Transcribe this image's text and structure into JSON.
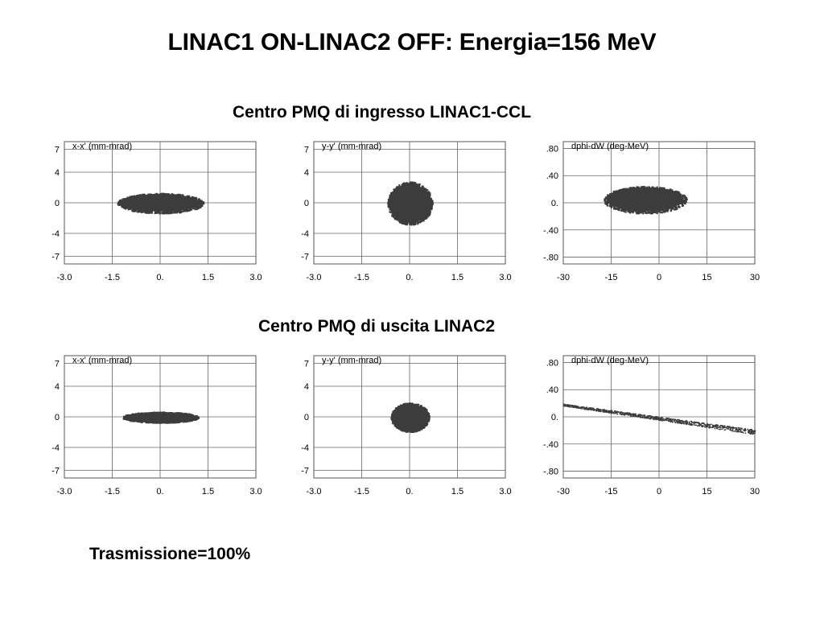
{
  "slide": {
    "title": "LINAC1 ON-LINAC2 OFF: Energia=156 MeV",
    "section_top": "Centro PMQ di ingresso LINAC1-CCL",
    "section_bottom": "Centro PMQ di uscita LINAC2",
    "footer": "Trasmissione=100%"
  },
  "chart_data": [
    {
      "type": "scatter",
      "panel": "ingresso-x",
      "title": "x-x' (mm-mrad)",
      "xlim": [
        -3.0,
        3.0
      ],
      "ylim": [
        -8,
        8
      ],
      "xticks": [
        -3.0,
        -1.5,
        0.0,
        1.5,
        3.0
      ],
      "xtick_labels": [
        "-3.0",
        "-1.5",
        "0.",
        "1.5",
        "3.0"
      ],
      "yticks": [
        7,
        4,
        0,
        -4,
        -7
      ],
      "ytick_labels": [
        "7",
        "4",
        "0",
        "-4",
        "-7"
      ],
      "grid": true,
      "cloud": {
        "shape": "ellipse",
        "center": [
          0.0,
          0.0
        ],
        "x_halfwidth": 1.35,
        "y_halfwidth": 1.3
      },
      "color": "#3c3c3c"
    },
    {
      "type": "scatter",
      "panel": "ingresso-y",
      "title": "y-y' (mm-mrad)",
      "xlim": [
        -3.0,
        3.0
      ],
      "ylim": [
        -8,
        8
      ],
      "xticks": [
        -3.0,
        -1.5,
        0.0,
        1.5,
        3.0
      ],
      "xtick_labels": [
        "-3.0",
        "-1.5",
        "0.",
        "1.5",
        "3.0"
      ],
      "yticks": [
        7,
        4,
        0,
        -4,
        -7
      ],
      "ytick_labels": [
        "7",
        "4",
        "0",
        "-4",
        "-7"
      ],
      "grid": true,
      "cloud": {
        "shape": "ellipse",
        "center": [
          0.0,
          0.0
        ],
        "x_halfwidth": 0.7,
        "y_halfwidth": 2.8
      },
      "color": "#3c3c3c"
    },
    {
      "type": "scatter",
      "panel": "ingresso-phase",
      "title": "dphi-dW (deg-MeV)",
      "xlim": [
        -30,
        30
      ],
      "ylim": [
        -0.9,
        0.9
      ],
      "xticks": [
        -30,
        -15,
        0,
        15,
        30
      ],
      "xtick_labels": [
        "-30",
        "-15",
        "0",
        "15",
        "30"
      ],
      "yticks": [
        0.8,
        0.4,
        0.0,
        -0.4,
        -0.8
      ],
      "ytick_labels": [
        ".80",
        ".40",
        "0.",
        "-.40",
        "-.80"
      ],
      "grid": true,
      "cloud": {
        "shape": "ellipse",
        "center": [
          -4.5,
          0.05
        ],
        "x_halfwidth": 13,
        "y_halfwidth": 0.2
      },
      "color": "#3c3c3c"
    },
    {
      "type": "scatter",
      "panel": "uscita-x",
      "title": "x-x' (mm-mrad)",
      "xlim": [
        -3.0,
        3.0
      ],
      "ylim": [
        -8,
        8
      ],
      "xticks": [
        -3.0,
        -1.5,
        0.0,
        1.5,
        3.0
      ],
      "xtick_labels": [
        "-3.0",
        "-1.5",
        "0.",
        "1.5",
        "3.0"
      ],
      "yticks": [
        7,
        4,
        0,
        -4,
        -7
      ],
      "ytick_labels": [
        "7",
        "4",
        "0",
        "-4",
        "-7"
      ],
      "grid": true,
      "cloud": {
        "shape": "ellipse",
        "center": [
          0.0,
          0.0
        ],
        "x_halfwidth": 1.2,
        "y_halfwidth": 0.7
      },
      "color": "#3c3c3c"
    },
    {
      "type": "scatter",
      "panel": "uscita-y",
      "title": "y-y' (mm-mrad)",
      "xlim": [
        -3.0,
        3.0
      ],
      "ylim": [
        -8,
        8
      ],
      "xticks": [
        -3.0,
        -1.5,
        0.0,
        1.5,
        3.0
      ],
      "xtick_labels": [
        "-3.0",
        "-1.5",
        "0.",
        "1.5",
        "3.0"
      ],
      "yticks": [
        7,
        4,
        0,
        -4,
        -7
      ],
      "ytick_labels": [
        "7",
        "4",
        "0",
        "-4",
        "-7"
      ],
      "grid": true,
      "cloud": {
        "shape": "ellipse",
        "center": [
          0.0,
          0.0
        ],
        "x_halfwidth": 0.6,
        "y_halfwidth": 1.9
      },
      "color": "#3c3c3c"
    },
    {
      "type": "scatter",
      "panel": "uscita-phase",
      "title": "dphi-dW (deg-MeV)",
      "xlim": [
        -30,
        30
      ],
      "ylim": [
        -0.9,
        0.9
      ],
      "xticks": [
        -30,
        -15,
        0,
        15,
        30
      ],
      "xtick_labels": [
        "-30",
        "-15",
        "0",
        "15",
        "30"
      ],
      "yticks": [
        0.8,
        0.4,
        0.0,
        -0.4,
        -0.8
      ],
      "ytick_labels": [
        ".80",
        ".40",
        "0.",
        "-.40",
        "-.80"
      ],
      "grid": true,
      "cloud": {
        "shape": "band",
        "x_range": [
          -30,
          30
        ],
        "y_at_xmin": 0.18,
        "y_at_xmax": -0.22,
        "band_halfwidth": 0.025
      },
      "color": "#3c3c3c"
    }
  ]
}
